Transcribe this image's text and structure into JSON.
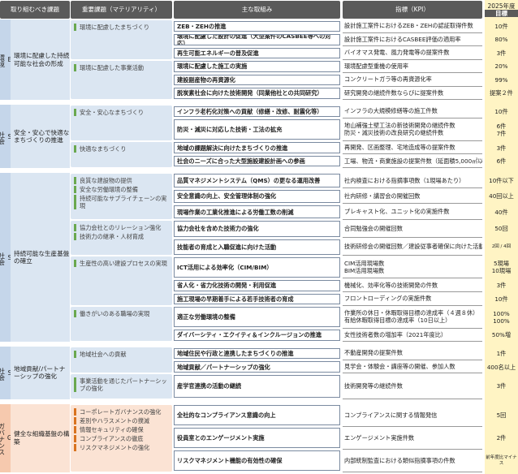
{
  "header": {
    "issue": "取り組むべき課題",
    "materiality": "重要課題（マテリアリティ）",
    "initiative": "主な取組み",
    "kpi": "指標（KPI）",
    "target_year": "2025年度",
    "target": "目標"
  },
  "sections": [
    {
      "letter": "E",
      "label": "環境",
      "issue": "環境に配慮した持続可能な社会の形成",
      "groups": [
        {
          "materialities": [
            "環境に配慮したまちづくり"
          ],
          "rows": [
            {
              "initiative": "ZEB・ZEHの推進",
              "kpi": [
                "設計施工案件におけるZEB・ZEHの認証取得件数"
              ],
              "target": [
                "10件"
              ]
            },
            {
              "initiative": "環境に配慮した設計の促進（大型案件のCASBEE等への対応）",
              "kpi": [
                "設計施工案件におけるCASBEE評価の適用率"
              ],
              "target": [
                "80%"
              ]
            },
            {
              "initiative": "再生可能エネルギーの普及促進",
              "kpi": [
                "バイオマス発電、風力発電等の提案件数"
              ],
              "target": [
                "3件"
              ]
            }
          ]
        },
        {
          "materialities": [
            "環境に配慮した事業活動"
          ],
          "rows": [
            {
              "initiative": "環境に配慮した施工の実施",
              "kpi": [
                "環境配慮型重機の使用率"
              ],
              "target": [
                "20%"
              ]
            },
            {
              "initiative": "建設副産物の再資源化",
              "kpi": [
                "コンクリートガラ等の再資源化率"
              ],
              "target": [
                "99%"
              ]
            },
            {
              "initiative": "脱炭素社会に向けた技術開発（同業他社との共同研究）",
              "kpi": [
                "研究開発の継続件数ならびに提案件数"
              ],
              "target": [
                "提案２件"
              ]
            }
          ]
        }
      ]
    },
    {
      "letter": "S",
      "label": "社会",
      "issue": "安全・安心で快適なまちづくりの推進",
      "groups": [
        {
          "materialities": [
            "安全・安心なまちづくり"
          ],
          "rows": [
            {
              "initiative": "インフラ老朽化対策への貢献（修繕・改修、耐震化等）",
              "kpi": [
                "インフラの大規模修繕等の施工件数"
              ],
              "target": [
                "10件"
              ]
            },
            {
              "initiative": "防災・減災に対応した技術・工法の拡充",
              "kpi": [
                "地山補強土壁工法の新技術開発の継続件数",
                "防災・減災技術の改良研究の継続件数"
              ],
              "target": [
                "6件",
                "7件"
              ]
            }
          ]
        },
        {
          "materialities": [
            "快適なまちづくり"
          ],
          "rows": [
            {
              "initiative": "地域の課題解決に向けたまちづくりの推進",
              "kpi": [
                "再開発、区画整理、宅地造成等の提案件数"
              ],
              "target": [
                "3件"
              ]
            },
            {
              "initiative": "社会のニーズに合った大型施設建設計画への参画",
              "kpi": [
                "工場、物流・商業施設の提案件数（延面積5,000㎡以上）"
              ],
              "target": [
                "6件"
              ]
            }
          ]
        }
      ]
    },
    {
      "letter": "S",
      "label": "社会",
      "issue": "持続可能な生産基盤の確立",
      "groups": [
        {
          "materialities": [
            "良質な建設物の提供",
            "安全な労働環境の整備",
            "持続可能なサプライチェーンの実現"
          ],
          "rows": [
            {
              "initiative": "品質マネジメントシステム（QMS）の更なる運用改善",
              "kpi": [
                "社内検査における指摘事項数（1現場あたり）"
              ],
              "target": [
                "10件以下"
              ]
            },
            {
              "initiative": "安全意識の向上、安全管理体制の強化",
              "kpi": [
                "社内研修・講習会の開催回数"
              ],
              "target": [
                "40回以上"
              ]
            },
            {
              "initiative": "現場作業の工業化推進による労働工数の削減",
              "kpi": [
                "プレキャスト化、ユニット化の実施件数"
              ],
              "target": [
                "40件"
              ]
            }
          ]
        },
        {
          "materialities": [
            "協力会社とのリレーション強化",
            "技術力の継承・人材育成"
          ],
          "rows": [
            {
              "initiative": "協力会社を含めた技術力の強化",
              "kpi": [
                "合同勉強会の開催回数"
              ],
              "target": [
                "50回"
              ]
            },
            {
              "initiative": "技能者の育成と入職促進に向けた活動",
              "kpi": [
                "技術研修会の開催回数／建設従事者確保に向けた活動回数"
              ],
              "target": [
                "2回 / 4回"
              ]
            }
          ]
        },
        {
          "materialities": [
            "生産性の高い建設プロセスの実現"
          ],
          "rows": [
            {
              "initiative": "ICT活用による効率化（CIM/BIM）",
              "kpi": [
                "CIM活用現場数",
                "BIM活用現場数"
              ],
              "target": [
                "5現場",
                "10現場"
              ]
            },
            {
              "initiative": "省人化・省力化技術の開発・利用促進",
              "kpi": [
                "機械化、効率化等の技術開発の件数"
              ],
              "target": [
                "3件"
              ]
            },
            {
              "initiative": "施工現場の早期着手による若手技術者の育成",
              "kpi": [
                "フロントローディングの実施件数"
              ],
              "target": [
                "10件"
              ]
            }
          ]
        },
        {
          "materialities": [
            "働きがいのある職場の実現"
          ],
          "rows": [
            {
              "initiative": "適正な労働環境の整備",
              "kpi": [
                "作業所の休日・休暇取得目標の達成率（４週８休）",
                "有給休暇取得目標の達成率（10日以上）"
              ],
              "target": [
                "100%",
                "100%"
              ]
            },
            {
              "initiative": "ダイバーシティ・エクイティ＆インクルージョンの推進",
              "kpi": [
                "女性技術者数の増加率（2021年度比）"
              ],
              "target": [
                "50%増"
              ]
            }
          ]
        }
      ]
    },
    {
      "letter": "S",
      "label": "社会",
      "issue": "地域貢献/パートナーシップの強化",
      "groups": [
        {
          "materialities": [
            "地域社会への貢献"
          ],
          "rows": [
            {
              "initiative": "地域住民や行政と連携したまちづくりの推進",
              "kpi": [
                "不動産開発の提案件数"
              ],
              "target": [
                "1件"
              ]
            },
            {
              "initiative": "地域貢献／パートナーシップの強化",
              "kpi": [
                "見学会・体験会・講座等の開催、参加人数"
              ],
              "target": [
                "400名以上"
              ]
            }
          ]
        },
        {
          "materialities": [
            "事業活動を通じたパートナーシップの強化"
          ],
          "rows": [
            {
              "initiative": "産学官連携の活動の継続",
              "kpi": [
                "技術開発等の継続件数"
              ],
              "target": [
                "3件"
              ]
            }
          ]
        }
      ]
    },
    {
      "letter": "G",
      "label": "ガバナンス",
      "issue": "健全な組織基盤の構築",
      "groups": [
        {
          "materialities": [
            "コーポレートガバナンスの強化",
            "差別やハラスメントの撲滅",
            "情報セキュリティの確保",
            "コンプライアンスの徹底",
            "リスクマネジメントの強化"
          ],
          "rows": [
            {
              "initiative": "全社的なコンプライアンス意識の向上",
              "kpi": [
                "コンプライアンスに関する情報発信"
              ],
              "target": [
                "5回"
              ]
            },
            {
              "initiative": "役員室とのエンゲージメント実施",
              "kpi": [
                "エンゲージメント実施件数"
              ],
              "target": [
                "2件"
              ]
            },
            {
              "initiative": "リスクマネジメント機能の有効性の確保",
              "kpi": [
                "内部統制監査における類似指摘事項の件数"
              ],
              "target": [
                "前年度比マイナス"
              ]
            }
          ]
        }
      ]
    }
  ]
}
